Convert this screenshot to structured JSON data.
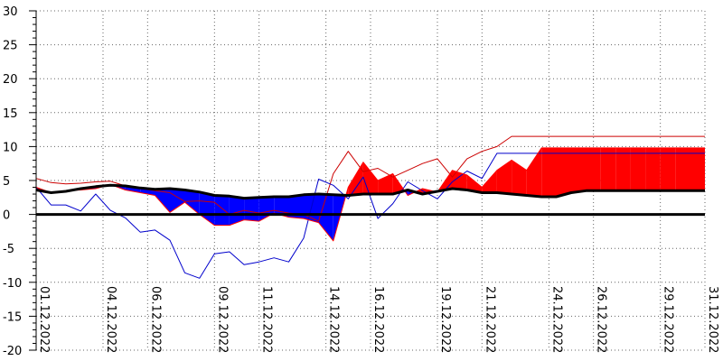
{
  "chart_data": {
    "type": "area",
    "ylim": [
      -20,
      30
    ],
    "yticks": [
      30,
      25,
      20,
      15,
      10,
      5,
      0,
      -5,
      -10,
      -15,
      -20
    ],
    "xticks": [
      {
        "day": 1,
        "label": "01.12.2022"
      },
      {
        "day": 4,
        "label": "04.12.2022"
      },
      {
        "day": 6,
        "label": "06.12.2022"
      },
      {
        "day": 9,
        "label": "09.12.2022"
      },
      {
        "day": 11,
        "label": "11.12.2022"
      },
      {
        "day": 14,
        "label": "14.12.2022"
      },
      {
        "day": 16,
        "label": "16.12.2022"
      },
      {
        "day": 19,
        "label": "19.12.2022"
      },
      {
        "day": 21,
        "label": "21.12.2022"
      },
      {
        "day": 24,
        "label": "24.12.2022"
      },
      {
        "day": 26,
        "label": "26.12.2022"
      },
      {
        "day": 29,
        "label": "29.12.2022"
      },
      {
        "day": 31,
        "label": "31.12.2022"
      }
    ],
    "grid": true,
    "x": [
      1,
      1.67,
      2.33,
      3,
      3.67,
      4.33,
      5,
      5.67,
      6.33,
      7,
      7.67,
      8.33,
      9,
      9.67,
      10.33,
      11,
      11.67,
      12.33,
      13,
      13.67,
      14.33,
      15,
      15.67,
      16.33,
      17,
      17.67,
      18.33,
      19,
      19.67,
      20.33,
      21,
      21.67,
      22.33,
      23,
      23.67,
      24.33,
      25,
      25.67,
      26.33,
      27,
      27.67,
      28.33,
      29,
      29.67,
      30.33,
      31
    ],
    "series": [
      {
        "role": "mean",
        "color": "#ff0000",
        "values": [
          4.0,
          3.2,
          3.5,
          3.6,
          3.8,
          4.4,
          3.6,
          3.2,
          2.8,
          0.3,
          1.8,
          0.0,
          -1.6,
          -1.6,
          -0.8,
          -1.0,
          0.2,
          -0.4,
          -0.6,
          -1.2,
          -3.9,
          4.0,
          7.7,
          5.0,
          6.0,
          2.8,
          3.8,
          3.3,
          6.5,
          5.8,
          4.0,
          6.5,
          8.0,
          6.5,
          9.8,
          9.8,
          9.8,
          9.8,
          9.8,
          9.8,
          9.8,
          9.8,
          9.8,
          9.8,
          9.8,
          9.8
        ]
      },
      {
        "role": "normal",
        "color": "#000000",
        "values": [
          3.6,
          3.2,
          3.4,
          3.8,
          4.1,
          4.3,
          4.2,
          3.9,
          3.7,
          3.8,
          3.6,
          3.3,
          2.8,
          2.7,
          2.4,
          2.5,
          2.6,
          2.6,
          2.9,
          3.0,
          2.9,
          2.8,
          3.0,
          3.0,
          3.0,
          3.6,
          3.0,
          3.4,
          3.8,
          3.6,
          3.2,
          3.2,
          3.0,
          2.8,
          2.6,
          2.6,
          3.2,
          3.5,
          3.5,
          3.5,
          3.5,
          3.5,
          3.5,
          3.5,
          3.5,
          3.5
        ]
      },
      {
        "role": "max",
        "color": "#cc0000",
        "values": [
          5.3,
          4.7,
          4.5,
          4.6,
          4.8,
          4.9,
          4.2,
          3.8,
          3.5,
          3.2,
          1.9,
          2.0,
          1.8,
          0.0,
          0.6,
          0.2,
          0.6,
          0.2,
          0.0,
          -1.0,
          6.0,
          9.3,
          6.3,
          6.8,
          5.5,
          6.5,
          7.5,
          8.2,
          5.5,
          8.2,
          9.3,
          10.0,
          11.5,
          11.5,
          11.5,
          11.5,
          11.5,
          11.5,
          11.5,
          11.5,
          11.5,
          11.5,
          11.5,
          11.5,
          11.5,
          11.5
        ]
      },
      {
        "role": "min",
        "color": "#0000cc",
        "values": [
          4.0,
          1.4,
          1.4,
          0.5,
          3.0,
          0.6,
          -0.5,
          -2.6,
          -2.3,
          -3.8,
          -8.6,
          -9.4,
          -5.8,
          -5.5,
          -7.4,
          -7.0,
          -6.4,
          -7.0,
          -3.5,
          5.2,
          4.3,
          2.3,
          5.5,
          -0.6,
          1.6,
          4.8,
          3.5,
          2.3,
          4.8,
          6.4,
          5.3,
          9.0,
          9.0,
          9.0,
          9.0,
          9.0,
          9.0,
          9.0,
          9.0,
          9.0,
          9.0,
          9.0,
          9.0,
          9.0,
          9.0,
          9.0
        ]
      }
    ]
  }
}
